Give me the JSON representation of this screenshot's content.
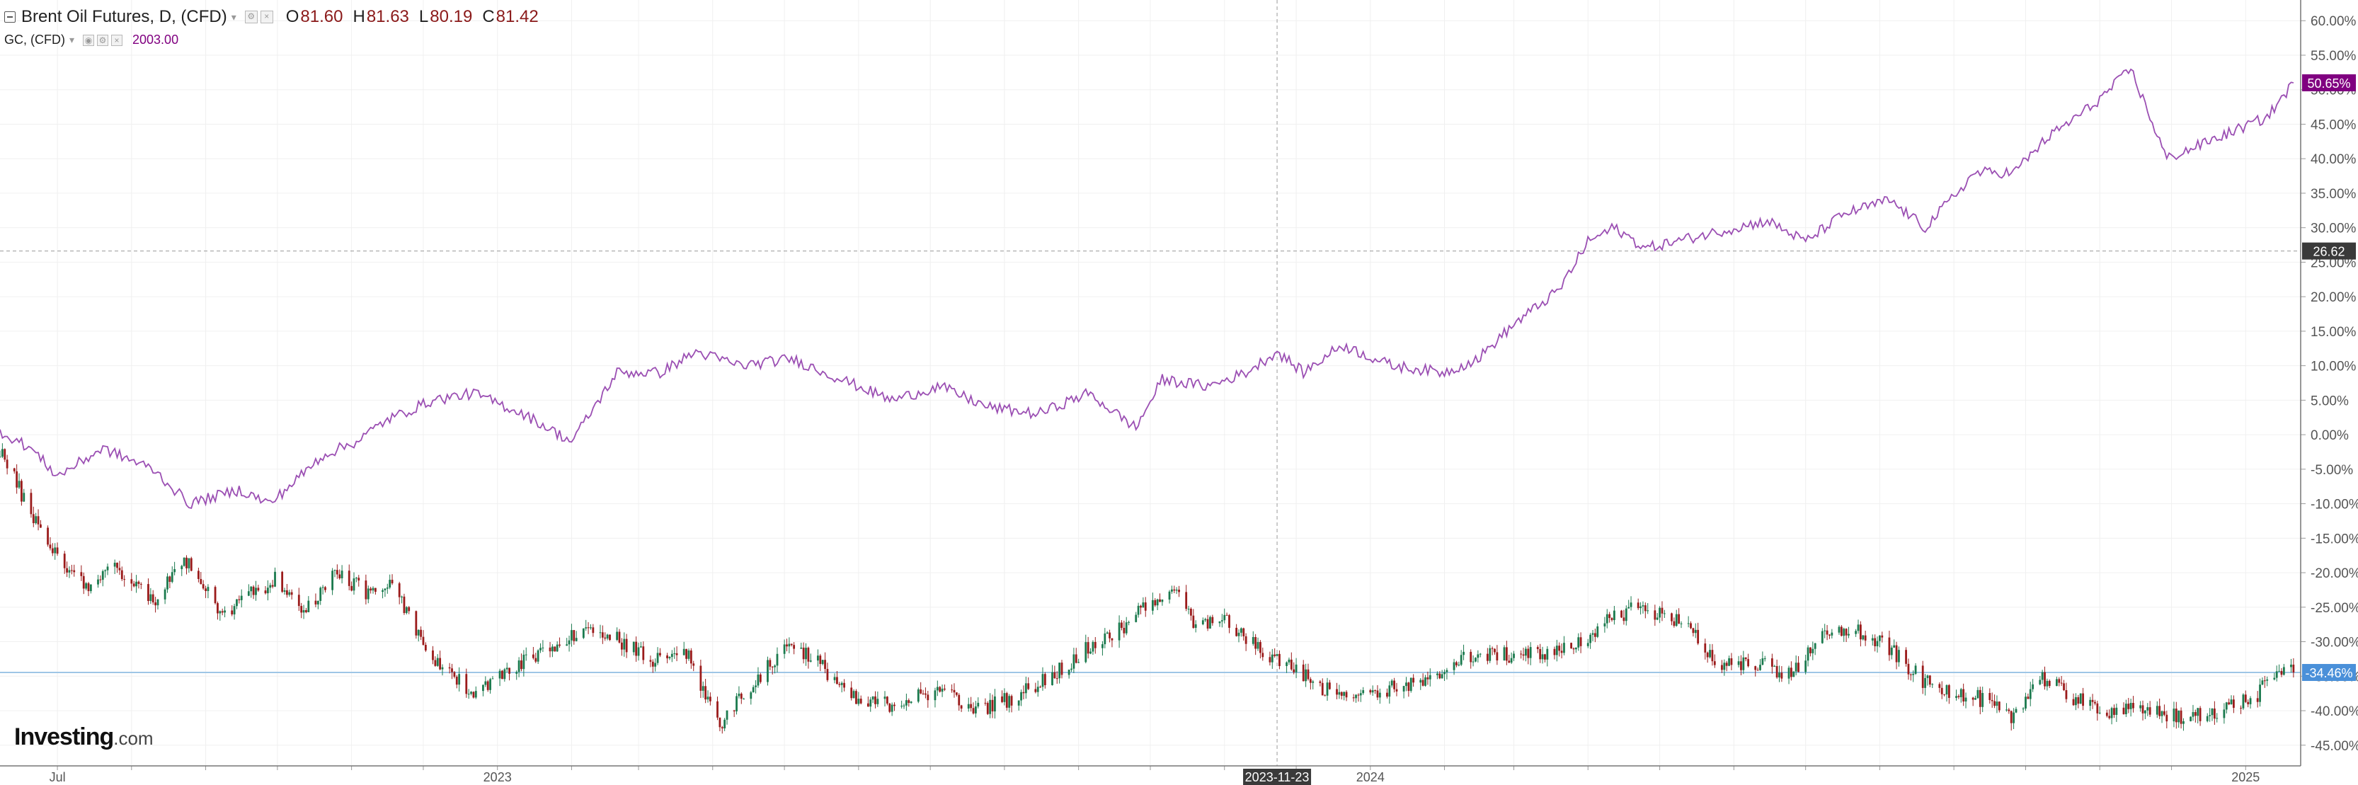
{
  "legend": {
    "main_symbol": "Brent Oil Futures, D, (CFD)",
    "open_label": "O",
    "open_value": "81.60",
    "high_label": "H",
    "high_value": "81.63",
    "low_label": "L",
    "low_value": "80.19",
    "close_label": "C",
    "close_value": "81.42",
    "compare_symbol": "GC, (CFD)",
    "compare_value": "2003.00"
  },
  "logo": {
    "main": "Investing",
    "suffix": ".com"
  },
  "colors": {
    "up_candle": "#1b7a4e",
    "down_candle": "#9b1b1b",
    "compare_line": "#9b4fb3",
    "compare_badge": "#800080",
    "close_line": "#9ec6e6",
    "close_badge": "#4a90d9",
    "crosshair_badge": "#3a3a3a",
    "grid": "#f0f0f0",
    "axis_text": "#555555"
  },
  "chart_data": {
    "type": "line",
    "scale": "percent",
    "ylim": [
      -48,
      63
    ],
    "y_ticks": [
      "60.00%",
      "55.00%",
      "50.00%",
      "45.00%",
      "40.00%",
      "35.00%",
      "30.00%",
      "25.00%",
      "20.00%",
      "15.00%",
      "10.00%",
      "5.00%",
      "0.00%",
      "-5.00%",
      "-10.00%",
      "-15.00%",
      "-20.00%",
      "-25.00%",
      "-30.00%",
      "-35.00%",
      "-40.00%",
      "-45.00%"
    ],
    "x_labels": [
      "Jul",
      "2023",
      "2024",
      "2025"
    ],
    "x_label_dates": [
      "2022-07-01",
      "2023-01-01",
      "2024-01-01",
      "2025-01-01"
    ],
    "xlim": [
      "2022-06-07",
      "2025-01-24"
    ],
    "grid": true,
    "crosshair": {
      "date_label": "2023-11-23",
      "date": "2023-11-23",
      "price_label": "26.62",
      "value": 26.62
    },
    "badges": {
      "compare_last": "50.65%",
      "main_last": "-34.46%"
    },
    "series": [
      {
        "type": "line",
        "x": [
          "2022-06-07",
          "2022-06-20",
          "2022-07-01",
          "2022-07-20",
          "2022-08-10",
          "2022-08-25",
          "2022-09-15",
          "2022-09-28",
          "2022-10-20",
          "2022-11-03",
          "2022-11-15",
          "2022-12-05",
          "2022-12-22",
          "2023-01-12",
          "2023-02-01",
          "2023-02-20",
          "2023-03-10",
          "2023-03-25",
          "2023-04-13",
          "2023-05-04",
          "2023-05-25",
          "2023-06-15",
          "2023-07-05",
          "2023-07-25",
          "2023-08-15",
          "2023-09-05",
          "2023-09-25",
          "2023-10-06",
          "2023-10-25",
          "2023-11-10",
          "2023-11-23",
          "2023-12-04",
          "2023-12-20",
          "2024-01-10",
          "2024-02-01",
          "2024-02-15",
          "2024-03-01",
          "2024-03-20",
          "2024-04-01",
          "2024-04-12",
          "2024-04-25",
          "2024-05-20",
          "2024-06-15",
          "2024-07-01",
          "2024-07-17",
          "2024-08-05",
          "2024-08-20",
          "2024-09-10",
          "2024-09-26",
          "2024-10-10",
          "2024-10-30",
          "2024-11-14",
          "2024-11-29",
          "2024-12-20",
          "2025-01-10",
          "2025-01-21"
        ],
        "values": [
          0.5,
          -2,
          -6,
          -2,
          -5,
          -10,
          -8,
          -10,
          -3,
          -1,
          2,
          5,
          6,
          3,
          -1,
          9,
          9,
          12,
          10,
          11,
          8,
          5,
          7,
          4,
          3,
          6,
          1,
          8,
          7,
          9,
          12,
          9,
          13,
          10,
          9,
          11,
          16,
          21,
          28,
          30,
          27,
          29,
          31,
          28,
          32,
          34,
          30,
          38,
          38,
          43,
          48,
          53,
          40,
          43,
          46,
          51
        ]
      },
      {
        "type": "candlestick",
        "x": [
          "2022-06-07",
          "2022-06-18",
          "2022-06-30",
          "2022-07-12",
          "2022-07-25",
          "2022-08-10",
          "2022-08-25",
          "2022-09-08",
          "2022-09-20",
          "2022-09-30",
          "2022-10-12",
          "2022-10-25",
          "2022-11-08",
          "2022-11-18",
          "2022-12-02",
          "2022-12-12",
          "2022-12-22",
          "2023-01-12",
          "2023-01-25",
          "2023-02-08",
          "2023-02-22",
          "2023-03-07",
          "2023-03-20",
          "2023-04-04",
          "2023-04-15",
          "2023-05-04",
          "2023-05-15",
          "2023-06-01",
          "2023-06-15",
          "2023-07-05",
          "2023-07-20",
          "2023-08-05",
          "2023-08-20",
          "2023-09-05",
          "2023-09-20",
          "2023-09-28",
          "2023-10-10",
          "2023-10-20",
          "2023-11-01",
          "2023-11-15",
          "2023-12-01",
          "2023-12-12",
          "2024-01-05",
          "2024-01-25",
          "2024-02-10",
          "2024-03-01",
          "2024-03-25",
          "2024-04-05",
          "2024-04-20",
          "2024-05-10",
          "2024-05-25",
          "2024-06-10",
          "2024-06-25",
          "2024-07-05",
          "2024-07-20",
          "2024-08-05",
          "2024-08-20",
          "2024-09-10",
          "2024-09-25",
          "2024-10-07",
          "2024-10-20",
          "2024-11-05",
          "2024-11-20",
          "2024-12-05",
          "2024-12-20",
          "2025-01-05",
          "2025-01-15",
          "2025-01-21"
        ],
        "close": [
          -2,
          -10,
          -17,
          -22,
          -19,
          -24,
          -18,
          -26,
          -23,
          -21,
          -26,
          -20,
          -23,
          -22,
          -31,
          -35,
          -37,
          -33,
          -31,
          -28,
          -30,
          -33,
          -31,
          -42,
          -37,
          -30,
          -33,
          -39,
          -39,
          -37,
          -40,
          -38,
          -35,
          -31,
          -28,
          -25,
          -22,
          -28,
          -27,
          -31,
          -34,
          -37,
          -37,
          -36,
          -32,
          -32,
          -31,
          -28,
          -25,
          -27,
          -33,
          -33,
          -35,
          -30,
          -28,
          -31,
          -36,
          -38,
          -41,
          -35,
          -38,
          -40,
          -40,
          -41,
          -40,
          -38,
          -34,
          -34.46
        ]
      }
    ]
  }
}
